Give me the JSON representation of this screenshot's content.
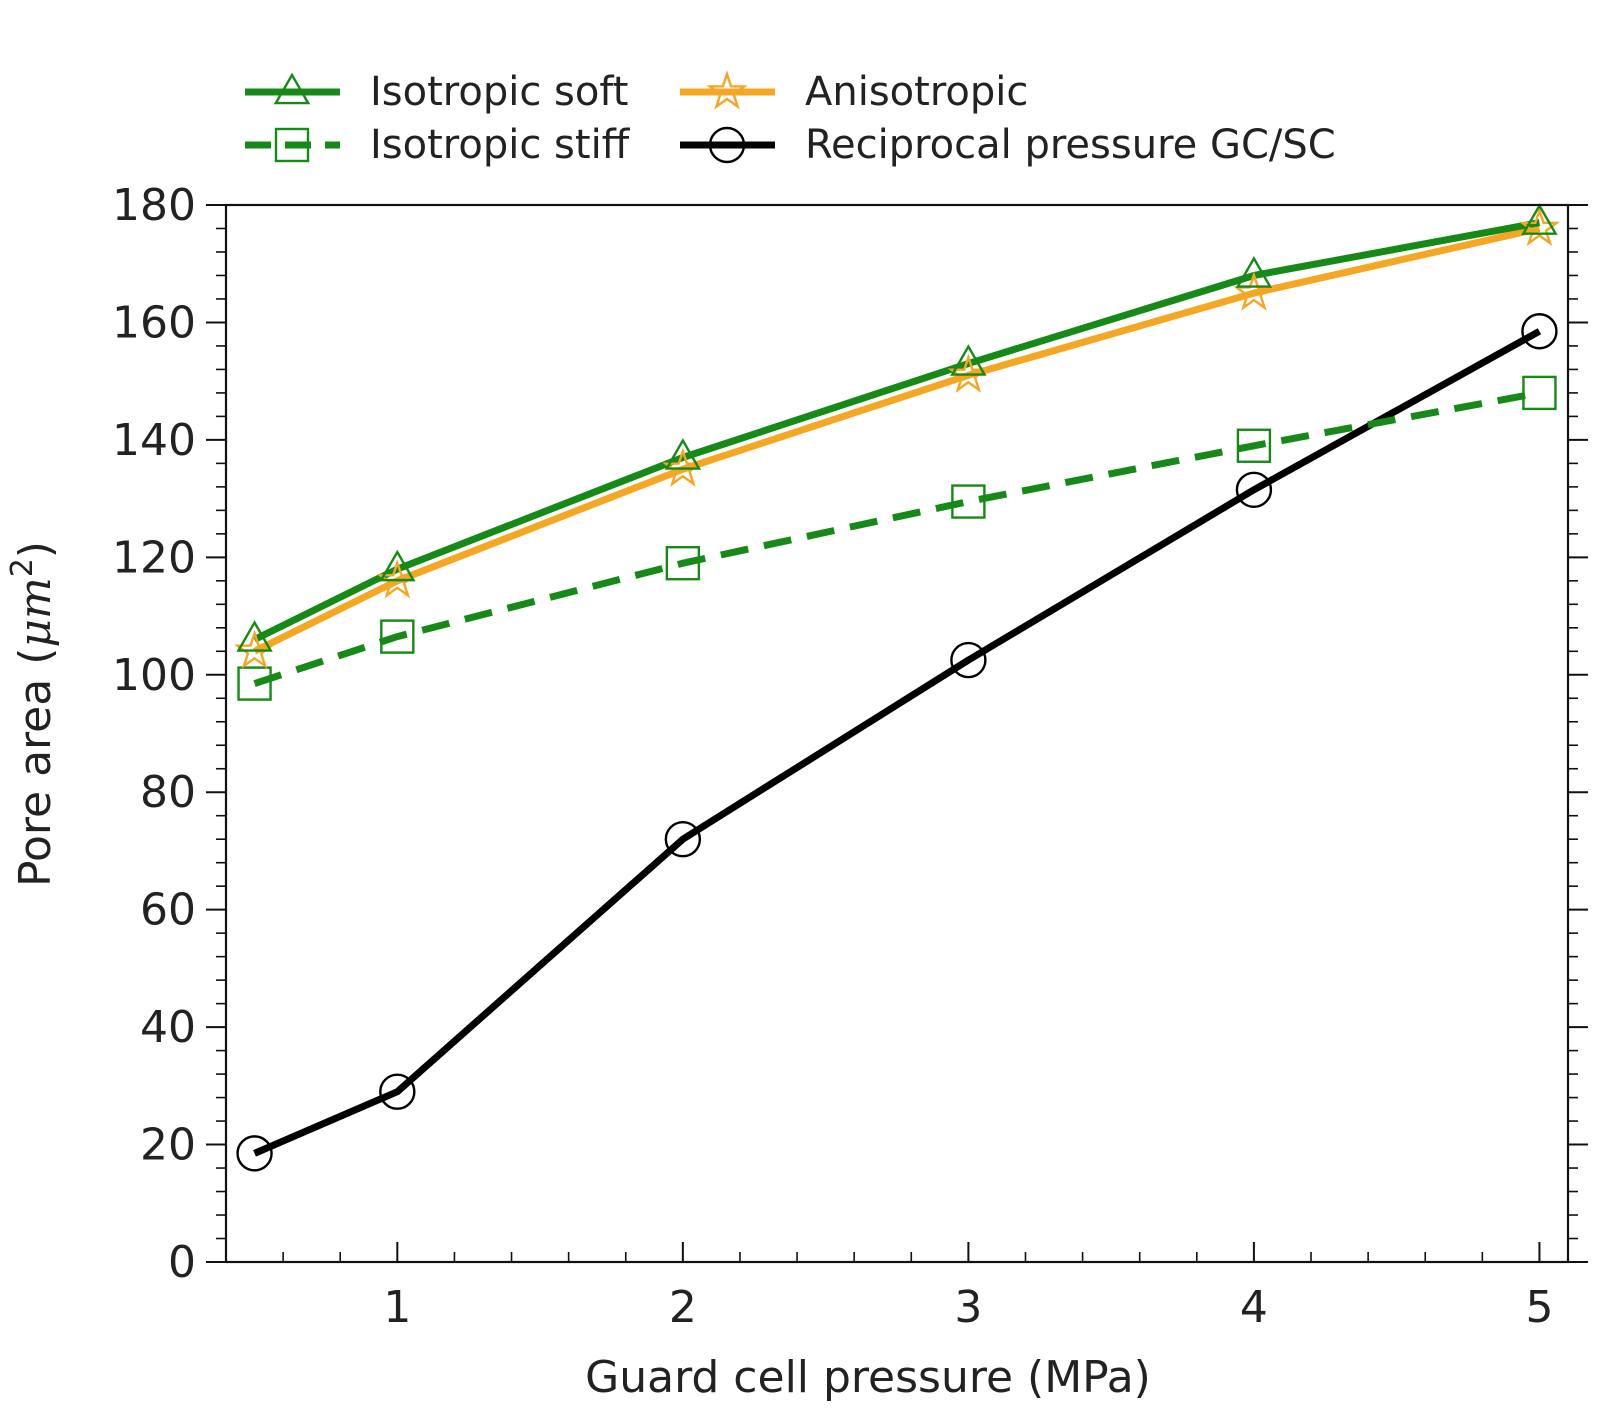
{
  "chart_data": {
    "type": "line",
    "title": "",
    "xlabel": "Guard cell pressure (MPa)",
    "ylabel_prefix": "Pore area (",
    "ylabel_unit": "μm",
    "ylabel_exponent": "2",
    "ylabel_suffix": ")",
    "xlim": [
      0.4,
      5.1
    ],
    "ylim": [
      0,
      180
    ],
    "x_ticks": [
      1,
      2,
      3,
      4,
      5
    ],
    "y_ticks": [
      0,
      20,
      40,
      60,
      80,
      100,
      120,
      140,
      160,
      180
    ],
    "grid": false,
    "legend_position": "top, outside plot, two columns",
    "x": [
      0.5,
      1,
      2,
      3,
      4,
      5
    ],
    "series": [
      {
        "name": "Isotropic soft",
        "values": [
          106,
          118,
          137,
          153,
          168,
          177
        ],
        "color": "#168a16",
        "marker": "triangle",
        "line_style": "solid"
      },
      {
        "name": "Isotropic stiff",
        "values": [
          98.5,
          106.5,
          119,
          129.5,
          139,
          148
        ],
        "color": "#168a16",
        "marker": "square",
        "line_style": "dashed"
      },
      {
        "name": "Anisotropic",
        "values": [
          104,
          116,
          135,
          151,
          165,
          176
        ],
        "color": "#f5a623",
        "marker": "star",
        "line_style": "solid"
      },
      {
        "name": "Reciprocal pressure GC/SC",
        "values": [
          18.5,
          29,
          72,
          102.5,
          131.5,
          158.5
        ],
        "color": "#000000",
        "marker": "circle",
        "line_style": "solid"
      }
    ],
    "legend_order": [
      0,
      1,
      2,
      3
    ]
  }
}
